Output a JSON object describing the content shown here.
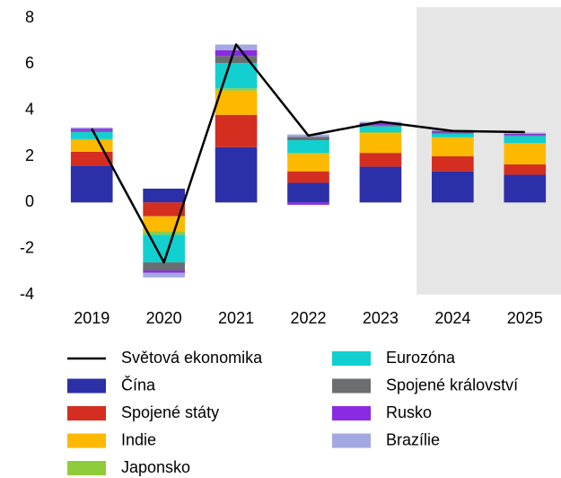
{
  "chart_data": {
    "type": "bar",
    "stacked": true,
    "categories": [
      "2019",
      "2020",
      "2021",
      "2022",
      "2023",
      "2024",
      "2025"
    ],
    "forecast_from": "2024",
    "forecast_color": "#e6e6e6",
    "series": [
      {
        "name": "Světová ekonomika",
        "type": "line",
        "color": "#000000",
        "values": [
          3.2,
          -2.6,
          6.85,
          2.9,
          3.5,
          3.1,
          3.05
        ]
      },
      {
        "name": "Čína",
        "color": "#2b2fa8",
        "values": [
          1.6,
          0.6,
          2.4,
          0.85,
          1.55,
          1.35,
          1.2
        ]
      },
      {
        "name": "Spojené státy",
        "color": "#d42e20",
        "values": [
          0.6,
          -0.6,
          1.4,
          0.5,
          0.6,
          0.65,
          0.45
        ]
      },
      {
        "name": "Indie",
        "color": "#fdb900",
        "values": [
          0.5,
          -0.65,
          1.05,
          0.75,
          0.85,
          0.8,
          0.9
        ]
      },
      {
        "name": "Japonsko",
        "color": "#8fcc3c",
        "values": [
          0.05,
          -0.15,
          0.1,
          0.05,
          0.05,
          0.03,
          0.03
        ]
      },
      {
        "name": "Eurozóna",
        "color": "#12cfd0",
        "values": [
          0.3,
          -1.2,
          1.1,
          0.55,
          0.25,
          0.15,
          0.3
        ]
      },
      {
        "name": "Spojené království",
        "color": "#6b6e6f",
        "values": [
          0.05,
          -0.35,
          0.3,
          0.15,
          0.05,
          0.05,
          0.05
        ]
      },
      {
        "name": "Rusko",
        "color": "#8a2be2",
        "values": [
          0.1,
          -0.1,
          0.25,
          -0.1,
          0.1,
          0.07,
          0.05
        ]
      },
      {
        "name": "Brazílie",
        "color": "#a3a9e0",
        "values": [
          0.05,
          -0.2,
          0.25,
          0.1,
          0.05,
          0.05,
          0.05
        ]
      }
    ],
    "ylim": [
      -4,
      8
    ],
    "yticks": [
      -4,
      -2,
      0,
      2,
      4,
      6,
      8
    ],
    "grid": false
  }
}
